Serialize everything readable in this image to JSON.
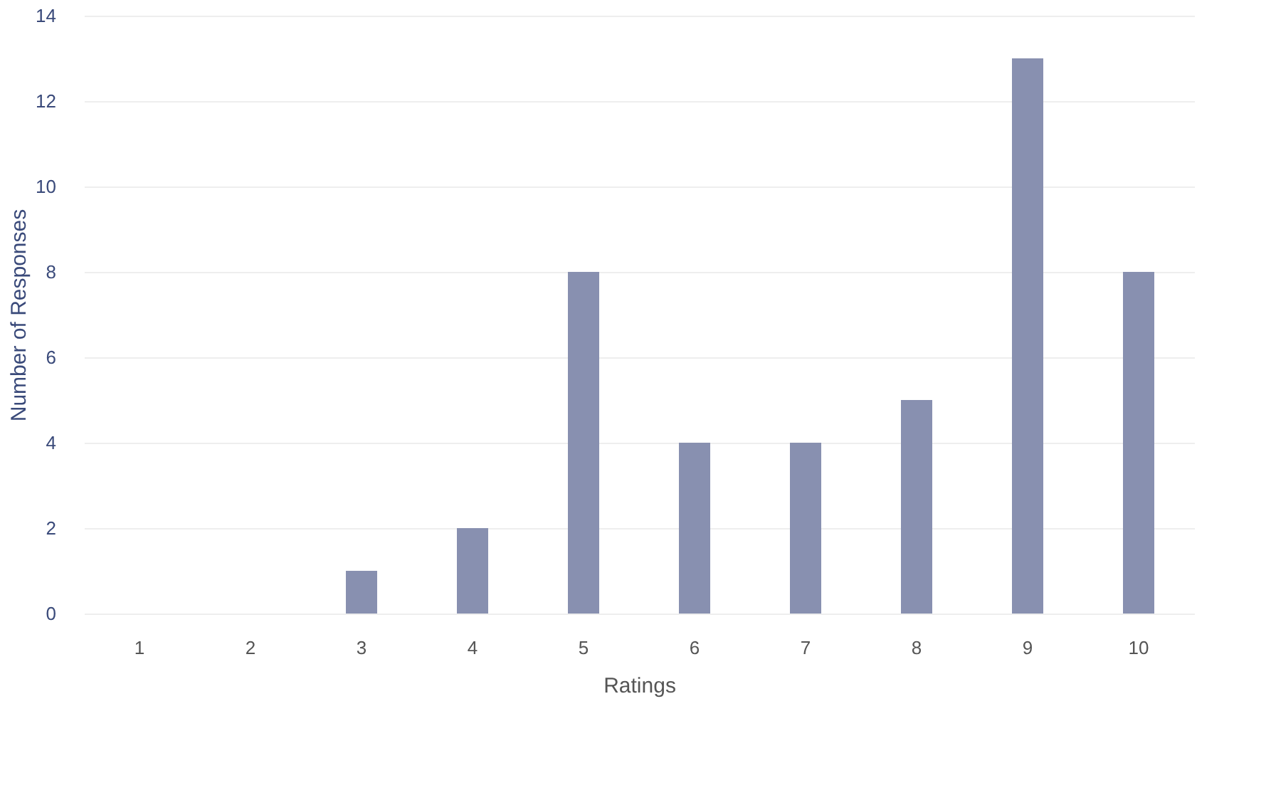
{
  "chart_data": {
    "type": "bar",
    "xlabel": "Ratings",
    "ylabel": "Number of Responses",
    "categories": [
      "1",
      "2",
      "3",
      "4",
      "5",
      "6",
      "7",
      "8",
      "9",
      "10"
    ],
    "values": [
      0,
      0,
      1,
      2,
      8,
      4,
      4,
      5,
      13,
      8
    ],
    "color": "#8890b0",
    "ylim": [
      0,
      14
    ],
    "yticks": [
      0,
      2,
      4,
      6,
      8,
      10,
      12,
      14
    ],
    "grid": "y"
  }
}
